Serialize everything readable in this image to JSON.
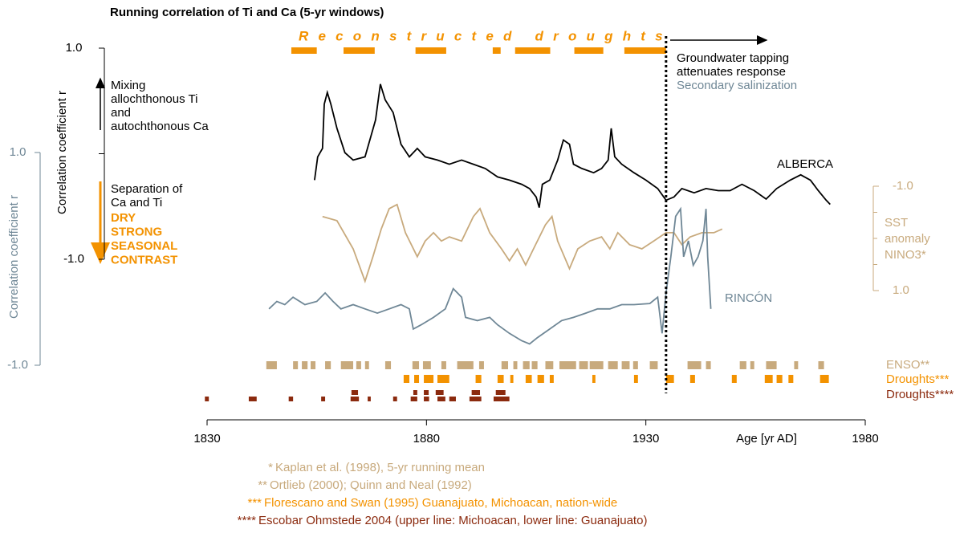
{
  "chart_data": {
    "type": "line",
    "title": "Running correlation of Ti and Ca (5-yr windows)",
    "xlabel": "Age [yr AD]",
    "ylabel": "Correlation coefficient r",
    "y3label": "Correlation coefficient r",
    "xlim": [
      1830,
      1980
    ],
    "xticks": [
      1830,
      1880,
      1930,
      1980
    ],
    "ylim": [
      -1,
      1
    ],
    "yticks": [
      {
        "value": 1,
        "label": "1.0"
      },
      {
        "value": -1,
        "label": "-1.0"
      }
    ],
    "y2lim": [
      -1,
      1
    ],
    "y2ticks": [
      {
        "value": -1,
        "label": "-1.0"
      },
      {
        "value": 1,
        "label": "1.0"
      }
    ],
    "y2inverted": true,
    "y3lim": [
      -1,
      1
    ],
    "y3ticks": [
      {
        "value": 1,
        "label": "1.0"
      },
      {
        "value": -1,
        "label": "-1.0"
      }
    ],
    "series": [
      {
        "name": "ALBERCA",
        "color": "#000000",
        "axis": "y",
        "x": [
          1854.5,
          1855.2,
          1856.3,
          1856.7,
          1857.4,
          1858.2,
          1859.6,
          1861.4,
          1863.3,
          1866.0,
          1867.3,
          1868.4,
          1869.5,
          1870.6,
          1872.4,
          1874.2,
          1876.1,
          1877.9,
          1879.7,
          1882.5,
          1885.2,
          1888.0,
          1890.7,
          1893.4,
          1896.2,
          1898.9,
          1901.7,
          1903.5,
          1905.0,
          1905.7,
          1906.4,
          1908.1,
          1909.9,
          1911.2,
          1912.6,
          1913.5,
          1915.4,
          1918.1,
          1919.9,
          1921.4,
          1922.1,
          1922.9,
          1924.5,
          1927.3,
          1930.0,
          1932.7,
          1934.6,
          1936.4,
          1938.2,
          1941.0,
          1943.7,
          1946.5,
          1949.2,
          1951.9,
          1954.7,
          1957.4,
          1959.8,
          1962.9,
          1965.3,
          1967.5,
          1969.3,
          1971.1,
          1972.0
        ],
        "values": [
          -0.25,
          -0.03,
          0.05,
          0.47,
          0.58,
          0.47,
          0.24,
          0.01,
          -0.06,
          -0.03,
          0.16,
          0.32,
          0.66,
          0.51,
          0.39,
          0.09,
          -0.03,
          0.05,
          -0.03,
          -0.06,
          -0.1,
          -0.06,
          -0.1,
          -0.14,
          -0.22,
          -0.25,
          -0.29,
          -0.33,
          -0.41,
          -0.51,
          -0.29,
          -0.25,
          -0.06,
          0.13,
          0.09,
          -0.1,
          -0.14,
          -0.18,
          -0.14,
          -0.06,
          0.24,
          -0.03,
          -0.1,
          -0.18,
          -0.25,
          -0.33,
          -0.44,
          -0.41,
          -0.33,
          -0.37,
          -0.33,
          -0.35,
          -0.35,
          -0.29,
          -0.35,
          -0.43,
          -0.33,
          -0.25,
          -0.2,
          -0.25,
          -0.35,
          -0.44,
          -0.48
        ]
      },
      {
        "name": "SST anomaly NINO3*",
        "color": "#c8aa7d",
        "axis": "y2",
        "x": [
          1856.3,
          1859.6,
          1863.3,
          1866.0,
          1867.8,
          1869.7,
          1871.5,
          1873.3,
          1875.2,
          1877.9,
          1879.7,
          1881.6,
          1883.4,
          1885.2,
          1888.0,
          1890.7,
          1892.2,
          1894.4,
          1897.1,
          1898.9,
          1900.7,
          1902.6,
          1904.4,
          1907.1,
          1908.6,
          1909.9,
          1912.6,
          1914.5,
          1917.2,
          1919.9,
          1921.8,
          1923.6,
          1926.3,
          1929.1,
          1931.8,
          1934.6,
          1936.4,
          1938.2,
          1940.1,
          1942.8,
          1945.5,
          1947.4
        ],
        "values": [
          -0.42,
          -0.34,
          0.2,
          0.82,
          0.35,
          -0.18,
          -0.57,
          -0.65,
          -0.11,
          0.35,
          0.05,
          -0.11,
          0.05,
          -0.03,
          0.05,
          -0.42,
          -0.57,
          -0.11,
          0.2,
          0.43,
          0.2,
          0.51,
          0.2,
          -0.26,
          -0.42,
          0.05,
          0.58,
          0.2,
          0.05,
          -0.03,
          0.2,
          -0.11,
          0.12,
          0.2,
          0.05,
          -0.11,
          -0.11,
          0.12,
          -0.03,
          -0.11,
          -0.11,
          -0.18
        ]
      },
      {
        "name": "RINCÓN",
        "color": "#6f8796",
        "axis": "y3",
        "x": [
          1844.1,
          1845.9,
          1847.7,
          1849.6,
          1852.3,
          1855.0,
          1856.9,
          1858.7,
          1860.5,
          1863.3,
          1866.0,
          1868.8,
          1871.5,
          1874.2,
          1876.1,
          1877.0,
          1878.8,
          1881.6,
          1884.3,
          1886.1,
          1888.0,
          1888.9,
          1891.6,
          1894.4,
          1896.2,
          1898.9,
          1901.7,
          1903.5,
          1905.3,
          1908.1,
          1910.8,
          1913.5,
          1916.3,
          1919.0,
          1921.8,
          1924.5,
          1927.3,
          1930.9,
          1932.7,
          1933.7,
          1934.6,
          1935.7,
          1936.8,
          1937.9,
          1938.6,
          1939.7,
          1940.8,
          1941.9,
          1943.0,
          1943.7,
          1944.1,
          1944.8
        ],
        "values": [
          -0.47,
          -0.4,
          -0.43,
          -0.36,
          -0.43,
          -0.4,
          -0.32,
          -0.4,
          -0.47,
          -0.43,
          -0.47,
          -0.51,
          -0.47,
          -0.43,
          -0.47,
          -0.66,
          -0.62,
          -0.55,
          -0.47,
          -0.28,
          -0.36,
          -0.55,
          -0.58,
          -0.55,
          -0.62,
          -0.7,
          -0.77,
          -0.8,
          -0.74,
          -0.66,
          -0.58,
          -0.55,
          -0.51,
          -0.47,
          -0.47,
          -0.43,
          -0.43,
          -0.42,
          -0.36,
          -0.7,
          -0.32,
          0.02,
          0.4,
          0.47,
          0.02,
          0.17,
          -0.06,
          0.02,
          0.17,
          0.47,
          0.02,
          -0.47
        ]
      }
    ],
    "events": [
      {
        "name": "Reconstructed droughts",
        "color": "#f39200",
        "rows": [
          [
            [
              1849.2,
              1855.0
            ],
            [
              1861.1,
              1868.2
            ],
            [
              1877.5,
              1884.5
            ],
            [
              1895.1,
              1896.9
            ],
            [
              1900.2,
              1908.2
            ],
            [
              1913.7,
              1920.3
            ],
            [
              1925.1,
              1934.6
            ]
          ]
        ]
      },
      {
        "name": "ENSO**",
        "color": "#c8aa7d",
        "rows": [
          [
            [
              1843.5,
              1845.9
            ],
            [
              1849.6,
              1850.7
            ],
            [
              1851.6,
              1852.9
            ],
            [
              1853.6,
              1854.7
            ],
            [
              1856.9,
              1858.2
            ],
            [
              1860.5,
              1863.3
            ],
            [
              1864.0,
              1865.1
            ],
            [
              1866.0,
              1866.9
            ],
            [
              1870.6,
              1871.9
            ],
            [
              1876.8,
              1878.3
            ],
            [
              1879.2,
              1881.0
            ],
            [
              1883.4,
              1884.5
            ],
            [
              1887.0,
              1890.7
            ],
            [
              1892.0,
              1893.1
            ],
            [
              1897.1,
              1898.6
            ],
            [
              1899.8,
              1900.7
            ],
            [
              1902.0,
              1903.5
            ],
            [
              1904.0,
              1905.3
            ],
            [
              1907.1,
              1908.9
            ],
            [
              1910.3,
              1914.1
            ],
            [
              1914.8,
              1916.8
            ],
            [
              1917.2,
              1920.3
            ],
            [
              1921.4,
              1923.6
            ],
            [
              1924.5,
              1926.3
            ],
            [
              1927.1,
              1928.2
            ],
            [
              1930.9,
              1932.7
            ],
            [
              1939.5,
              1942.6
            ],
            [
              1943.7,
              1944.8
            ],
            [
              1951.4,
              1952.9
            ],
            [
              1953.8,
              1954.7
            ],
            [
              1957.4,
              1959.8
            ],
            [
              1963.8,
              1964.7
            ],
            [
              1969.3,
              1970.6
            ]
          ]
        ]
      },
      {
        "name": "Droughts***",
        "color": "#f39200",
        "rows": [
          [
            [
              1874.8,
              1876.1
            ],
            [
              1877.2,
              1878.3
            ],
            [
              1879.4,
              1881.6
            ],
            [
              1882.5,
              1885.2
            ],
            [
              1891.2,
              1892.5
            ],
            [
              1896.2,
              1897.6
            ],
            [
              1899.1,
              1899.8
            ],
            [
              1902.6,
              1904.0
            ],
            [
              1905.3,
              1906.8
            ],
            [
              1908.1,
              1909.0
            ],
            [
              1917.8,
              1918.5
            ],
            [
              1927.3,
              1928.2
            ],
            [
              1934.6,
              1936.4
            ],
            [
              1940.1,
              1941.2
            ],
            [
              1949.6,
              1950.7
            ],
            [
              1957.1,
              1958.9
            ],
            [
              1959.8,
              1961.1
            ],
            [
              1962.5,
              1963.6
            ],
            [
              1969.7,
              1971.7
            ]
          ]
        ]
      },
      {
        "name": "Droughts****",
        "color": "#8b2a0e",
        "rows": [
          [
            [
              1862.9,
              1864.4
            ],
            [
              1877.0,
              1877.9
            ],
            [
              1879.4,
              1880.5
            ],
            [
              1882.1,
              1883.9
            ],
            [
              1890.3,
              1892.2
            ],
            [
              1895.8,
              1898.0
            ]
          ],
          [
            [
              1829.5,
              1830.4
            ],
            [
              1839.5,
              1841.3
            ],
            [
              1848.6,
              1849.6
            ],
            [
              1856.0,
              1856.9
            ],
            [
              1862.7,
              1864.6
            ],
            [
              1866.6,
              1867.3
            ],
            [
              1872.4,
              1873.3
            ],
            [
              1876.4,
              1877.9
            ],
            [
              1879.4,
              1880.6
            ],
            [
              1882.5,
              1884.3
            ],
            [
              1885.2,
              1886.7
            ],
            [
              1889.8,
              1892.5
            ],
            [
              1895.3,
              1898.9
            ]
          ]
        ]
      }
    ],
    "marker_year": 1934.6,
    "annotations": {
      "right_top": [
        "Groundwater  tapping",
        "attenuates response"
      ],
      "salinization": "Secondary salinization",
      "mixing": [
        "Mixing",
        "allochthonous Ti",
        "and",
        "autochthonous Ca"
      ],
      "separation": [
        "Separation of",
        "Ca and Ti"
      ],
      "dry": [
        "DRY",
        "STRONG",
        "SEASONAL",
        "CONTRAST"
      ]
    },
    "footnotes": [
      {
        "marker": "*",
        "text": "Kaplan et al. (1998), 5-yr running mean",
        "color": "#c8aa7d"
      },
      {
        "marker": "**",
        "text": "Ortlieb (2000); Quinn and Neal (1992)",
        "color": "#c8aa7d"
      },
      {
        "marker": "***",
        "text": "Florescano and Swan (1995) Guanajuato, Michoacan, nation-wide",
        "color": "#f39200"
      },
      {
        "marker": "****",
        "text": "Escobar Ohmstede 2004 (upper line: Michoacan, lower line: Guanajuato)",
        "color": "#8b2a0e"
      }
    ]
  }
}
